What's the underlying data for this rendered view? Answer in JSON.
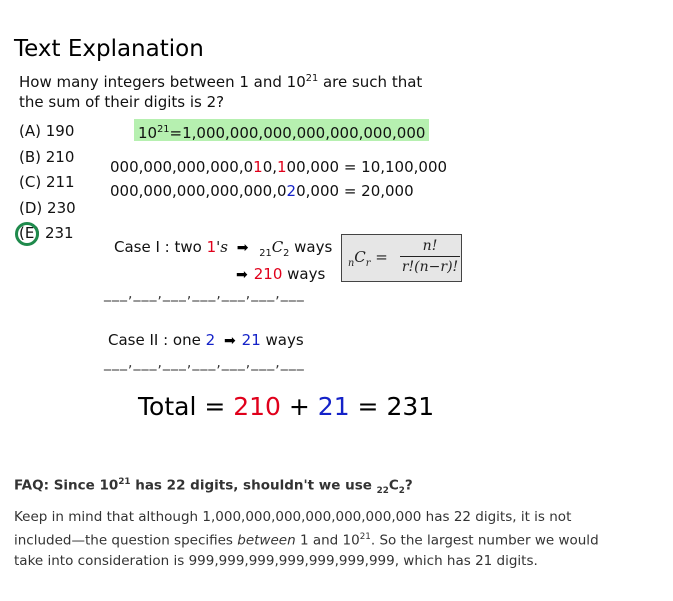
{
  "title": "Text Explanation",
  "question": {
    "part1": "How many integers between 1 and 10",
    "exp": "21",
    "part2": " are such that the sum of their digits is 2?"
  },
  "choices": [
    {
      "label": "(A) 190"
    },
    {
      "label": "(B) 210"
    },
    {
      "label": "(C) 211"
    },
    {
      "label": "(D) 230"
    },
    {
      "label": "(E) 231"
    }
  ],
  "selected_choice": "(E)",
  "power": {
    "base": "10",
    "exp": "21",
    "value": "=1,000,000,000,000,000,000,000"
  },
  "example1": {
    "pre": "000,000,000,000,0",
    "red1": "1",
    "mid": "0,",
    "red2": "1",
    "post": "00,000",
    "result": " = 10,100,000"
  },
  "example2": {
    "pre": "000,000,000,000,000,0",
    "blue": "2",
    "post": "0,000",
    "result": " = 20,000"
  },
  "case1": {
    "label": "Case I : two ",
    "digit": "1",
    "suffix": "'s",
    "combo_sub": "21",
    "combo_c": "C",
    "combo_sub2": "2",
    "ways": " ways",
    "count": "210",
    "ways2": " ways"
  },
  "formula": {
    "lhs_pre": "n",
    "lhs_c": "C",
    "lhs_r": "r",
    "equals": " =",
    "numerator": "n!",
    "denominator": "r!(n−r)!"
  },
  "separator": "___,___,___,___,___,___,___",
  "case2": {
    "label": "Case II : one ",
    "digit": "2",
    "count": "21",
    "ways": " ways"
  },
  "total": {
    "label": "Total = ",
    "v1": "210",
    "plus": " + ",
    "v2": "21",
    "result": " = 231"
  },
  "faq": {
    "q_prefix": "FAQ: Since 10",
    "q_exp": "21",
    "q_mid": " has 22 digits, shouldn't we use ",
    "q_sub1": "22",
    "q_c": "C",
    "q_sub2": "2",
    "q_end": "?",
    "a_part1": "Keep in mind that although 1,000,000,000,000,000,000,000 has 22 digits, it is not included—the question specifies ",
    "a_em": "between",
    "a_part2": " 1 and 10",
    "a_exp": "21",
    "a_part3": ". So the largest number we would take into consideration is 999,999,999,999,999,999,999, which has 21 digits."
  },
  "colors": {
    "highlight": "#b6f0b0",
    "red": "#e0001b",
    "blue": "#1422c8",
    "circle": "#1f8a4c"
  },
  "icons": [
    "arrow-right-icon",
    "answer-circle-icon"
  ]
}
